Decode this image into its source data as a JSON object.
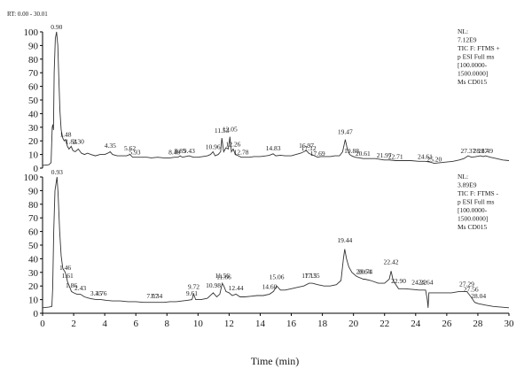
{
  "chart_data": [
    {
      "type": "line",
      "rt_label": "RT: 0.00 - 30.01",
      "info": [
        "NL:",
        "7.12E9",
        "TIC F: FTMS +",
        "p ESI Full ms",
        "[100.0000-",
        "1500.0000]",
        "Ms CD015"
      ],
      "xlim": [
        0,
        30
      ],
      "ylim": [
        0,
        100
      ],
      "yticks": [
        "0",
        "10",
        "20",
        "30",
        "40",
        "50",
        "60",
        "70",
        "80",
        "90",
        "100"
      ],
      "peak_labels": [
        {
          "x": 0.9,
          "y": 100,
          "label": "0.90"
        },
        {
          "x": 1.48,
          "y": 21,
          "label": "1.48"
        },
        {
          "x": 1.84,
          "y": 16,
          "label": "1.84"
        },
        {
          "x": 2.3,
          "y": 16,
          "label": "2.30"
        },
        {
          "x": 4.35,
          "y": 13,
          "label": "4.35"
        },
        {
          "x": 5.62,
          "y": 11,
          "label": "5.62"
        },
        {
          "x": 5.93,
          "y": 8,
          "label": "5.93"
        },
        {
          "x": 8.48,
          "y": 8,
          "label": "8.48"
        },
        {
          "x": 8.85,
          "y": 9,
          "label": "8.85"
        },
        {
          "x": 9.43,
          "y": 9,
          "label": "9.43"
        },
        {
          "x": 10.96,
          "y": 12,
          "label": "10.96"
        },
        {
          "x": 11.53,
          "y": 24,
          "label": "11.53"
        },
        {
          "x": 12.05,
          "y": 25,
          "label": "12.05"
        },
        {
          "x": 12.26,
          "y": 14,
          "label": "12.26"
        },
        {
          "x": 12.78,
          "y": 8,
          "label": "12.78"
        },
        {
          "x": 14.83,
          "y": 11,
          "label": "14.83"
        },
        {
          "x": 16.97,
          "y": 13,
          "label": "16.97"
        },
        {
          "x": 17.12,
          "y": 11,
          "label": "17.12"
        },
        {
          "x": 17.69,
          "y": 7,
          "label": "17.69"
        },
        {
          "x": 19.47,
          "y": 23,
          "label": "19.47"
        },
        {
          "x": 19.88,
          "y": 9,
          "label": "19.88"
        },
        {
          "x": 20.61,
          "y": 7,
          "label": "20.61"
        },
        {
          "x": 21.97,
          "y": 6,
          "label": "21.97"
        },
        {
          "x": 22.71,
          "y": 5,
          "label": "22.71"
        },
        {
          "x": 24.61,
          "y": 5,
          "label": "24.61"
        },
        {
          "x": 25.2,
          "y": 3,
          "label": "25.20"
        },
        {
          "x": 27.37,
          "y": 9,
          "label": "27.37"
        },
        {
          "x": 28.17,
          "y": 9,
          "label": "28.17"
        },
        {
          "x": 28.49,
          "y": 9,
          "label": "28.49"
        }
      ],
      "trace": [
        [
          0,
          2
        ],
        [
          0.4,
          2.5
        ],
        [
          0.55,
          4
        ],
        [
          0.62,
          30
        ],
        [
          0.66,
          32
        ],
        [
          0.7,
          28
        ],
        [
          0.75,
          70
        ],
        [
          0.82,
          95
        ],
        [
          0.9,
          100
        ],
        [
          0.98,
          90
        ],
        [
          1.05,
          65
        ],
        [
          1.12,
          42
        ],
        [
          1.2,
          28
        ],
        [
          1.3,
          22
        ],
        [
          1.4,
          20
        ],
        [
          1.48,
          21
        ],
        [
          1.6,
          16
        ],
        [
          1.7,
          14
        ],
        [
          1.84,
          16
        ],
        [
          1.95,
          13
        ],
        [
          2.1,
          12
        ],
        [
          2.3,
          14
        ],
        [
          2.5,
          11
        ],
        [
          2.7,
          10
        ],
        [
          2.9,
          11
        ],
        [
          3.1,
          10
        ],
        [
          3.4,
          9
        ],
        [
          3.7,
          10
        ],
        [
          4.0,
          10
        ],
        [
          4.2,
          11
        ],
        [
          4.35,
          12
        ],
        [
          4.5,
          10
        ],
        [
          4.8,
          9
        ],
        [
          5.1,
          9
        ],
        [
          5.4,
          9
        ],
        [
          5.62,
          10
        ],
        [
          5.8,
          8
        ],
        [
          5.93,
          8
        ],
        [
          6.3,
          8
        ],
        [
          6.7,
          8
        ],
        [
          7.0,
          7.5
        ],
        [
          7.4,
          8
        ],
        [
          7.8,
          7.5
        ],
        [
          8.2,
          7.5
        ],
        [
          8.48,
          8
        ],
        [
          8.7,
          8
        ],
        [
          8.85,
          9
        ],
        [
          9.0,
          8
        ],
        [
          9.2,
          8.5
        ],
        [
          9.43,
          9
        ],
        [
          9.7,
          8
        ],
        [
          10.0,
          8
        ],
        [
          10.3,
          8.5
        ],
        [
          10.6,
          9
        ],
        [
          10.8,
          10
        ],
        [
          10.96,
          12
        ],
        [
          11.1,
          9
        ],
        [
          11.3,
          10
        ],
        [
          11.45,
          12
        ],
        [
          11.53,
          22
        ],
        [
          11.65,
          12
        ],
        [
          11.8,
          15
        ],
        [
          11.95,
          14
        ],
        [
          12.05,
          23
        ],
        [
          12.15,
          12
        ],
        [
          12.26,
          14
        ],
        [
          12.4,
          10
        ],
        [
          12.6,
          9
        ],
        [
          12.78,
          8
        ],
        [
          13.0,
          8
        ],
        [
          13.3,
          8
        ],
        [
          13.6,
          8.5
        ],
        [
          14.0,
          8.5
        ],
        [
          14.4,
          9
        ],
        [
          14.6,
          9.5
        ],
        [
          14.83,
          10.5
        ],
        [
          15.0,
          9
        ],
        [
          15.3,
          9.5
        ],
        [
          15.6,
          9
        ],
        [
          16.0,
          9
        ],
        [
          16.3,
          10
        ],
        [
          16.6,
          11
        ],
        [
          16.8,
          12
        ],
        [
          16.97,
          13
        ],
        [
          17.12,
          11
        ],
        [
          17.3,
          10
        ],
        [
          17.5,
          9
        ],
        [
          17.69,
          8
        ],
        [
          17.9,
          8.5
        ],
        [
          18.2,
          8.5
        ],
        [
          18.5,
          8.5
        ],
        [
          18.8,
          9
        ],
        [
          19.1,
          9
        ],
        [
          19.3,
          12
        ],
        [
          19.47,
          21
        ],
        [
          19.6,
          14
        ],
        [
          19.75,
          10
        ],
        [
          19.88,
          9
        ],
        [
          20.1,
          8
        ],
        [
          20.4,
          7.5
        ],
        [
          20.61,
          7
        ],
        [
          21.0,
          7
        ],
        [
          21.4,
          7
        ],
        [
          21.97,
          6
        ],
        [
          22.3,
          6
        ],
        [
          22.71,
          5.5
        ],
        [
          23.2,
          5.5
        ],
        [
          23.7,
          5.5
        ],
        [
          24.2,
          5
        ],
        [
          24.61,
          5
        ],
        [
          24.9,
          4.5
        ],
        [
          25.2,
          3.5
        ],
        [
          25.6,
          4
        ],
        [
          26.0,
          4.5
        ],
        [
          26.4,
          5
        ],
        [
          26.8,
          6
        ],
        [
          27.1,
          7
        ],
        [
          27.37,
          9
        ],
        [
          27.6,
          8
        ],
        [
          27.9,
          8.5
        ],
        [
          28.17,
          9
        ],
        [
          28.35,
          8.5
        ],
        [
          28.49,
          9
        ],
        [
          28.8,
          8
        ],
        [
          29.2,
          7
        ],
        [
          29.6,
          6
        ],
        [
          30,
          5.5
        ]
      ]
    },
    {
      "type": "line",
      "info": [
        "NL:",
        "3.89E9",
        "TIC F: FTMS -",
        "p ESI Full ms",
        "[100.0000-",
        "1500.0000]",
        "Ms CD015"
      ],
      "xlim": [
        0,
        30
      ],
      "ylim": [
        0,
        100
      ],
      "yticks": [
        "0",
        "10",
        "20",
        "30",
        "40",
        "50",
        "60",
        "70",
        "80",
        "90",
        "100"
      ],
      "xticks": [
        "0",
        "2",
        "4",
        "6",
        "8",
        "10",
        "12",
        "14",
        "16",
        "18",
        "20",
        "22",
        "24",
        "26",
        "28",
        "30"
      ],
      "xlabel": "Time (min)",
      "peak_labels": [
        {
          "x": 0.93,
          "y": 100,
          "label": "0.93"
        },
        {
          "x": 1.46,
          "y": 30,
          "label": "1.46"
        },
        {
          "x": 1.61,
          "y": 24,
          "label": "1.61"
        },
        {
          "x": 1.86,
          "y": 17,
          "label": "1.86"
        },
        {
          "x": 2.43,
          "y": 15,
          "label": "2.43"
        },
        {
          "x": 3.45,
          "y": 11,
          "label": "3.45"
        },
        {
          "x": 3.76,
          "y": 11,
          "label": "3.76"
        },
        {
          "x": 7.07,
          "y": 9,
          "label": "7.07"
        },
        {
          "x": 7.34,
          "y": 9,
          "label": "7.34"
        },
        {
          "x": 9.61,
          "y": 11,
          "label": "9.61"
        },
        {
          "x": 9.72,
          "y": 16,
          "label": "9.72"
        },
        {
          "x": 10.98,
          "y": 17,
          "label": "10.98"
        },
        {
          "x": 11.56,
          "y": 24,
          "label": "11.56"
        },
        {
          "x": 11.66,
          "y": 23,
          "label": "11.66"
        },
        {
          "x": 12.44,
          "y": 15,
          "label": "12.44"
        },
        {
          "x": 14.6,
          "y": 16,
          "label": "14.60"
        },
        {
          "x": 15.06,
          "y": 23,
          "label": "15.06"
        },
        {
          "x": 17.15,
          "y": 24,
          "label": "17.15"
        },
        {
          "x": 17.35,
          "y": 24,
          "label": "17.35"
        },
        {
          "x": 19.44,
          "y": 50,
          "label": "19.44"
        },
        {
          "x": 20.64,
          "y": 27,
          "label": "20.64"
        },
        {
          "x": 20.74,
          "y": 27,
          "label": "20.74"
        },
        {
          "x": 22.42,
          "y": 34,
          "label": "22.42"
        },
        {
          "x": 22.9,
          "y": 20,
          "label": "22.90"
        },
        {
          "x": 24.22,
          "y": 19,
          "label": "24.22"
        },
        {
          "x": 24.64,
          "y": 19,
          "label": "24.64"
        },
        {
          "x": 27.29,
          "y": 18,
          "label": "27.29"
        },
        {
          "x": 27.56,
          "y": 14,
          "label": "27.56"
        },
        {
          "x": 28.04,
          "y": 9,
          "label": "28.04"
        }
      ],
      "trace": [
        [
          0,
          4
        ],
        [
          0.4,
          4.5
        ],
        [
          0.6,
          5
        ],
        [
          0.65,
          18
        ],
        [
          0.72,
          60
        ],
        [
          0.8,
          90
        ],
        [
          0.93,
          100
        ],
        [
          1.0,
          88
        ],
        [
          1.1,
          60
        ],
        [
          1.2,
          42
        ],
        [
          1.3,
          33
        ],
        [
          1.46,
          30
        ],
        [
          1.55,
          26
        ],
        [
          1.61,
          23
        ],
        [
          1.75,
          19
        ],
        [
          1.86,
          16
        ],
        [
          2.0,
          15
        ],
        [
          2.2,
          14
        ],
        [
          2.43,
          14
        ],
        [
          2.7,
          12
        ],
        [
          3.0,
          11
        ],
        [
          3.2,
          10.5
        ],
        [
          3.45,
          10
        ],
        [
          3.6,
          10
        ],
        [
          3.76,
          10
        ],
        [
          4.1,
          9.5
        ],
        [
          4.5,
          9
        ],
        [
          5.0,
          9
        ],
        [
          5.5,
          8.5
        ],
        [
          6.0,
          8.5
        ],
        [
          6.5,
          8
        ],
        [
          7.07,
          8
        ],
        [
          7.34,
          8
        ],
        [
          7.8,
          8
        ],
        [
          8.2,
          8.5
        ],
        [
          8.6,
          8.5
        ],
        [
          9.0,
          9
        ],
        [
          9.3,
          9.5
        ],
        [
          9.61,
          10
        ],
        [
          9.72,
          14
        ],
        [
          9.85,
          10
        ],
        [
          10.2,
          10
        ],
        [
          10.6,
          11
        ],
        [
          10.98,
          15
        ],
        [
          11.2,
          12
        ],
        [
          11.4,
          14
        ],
        [
          11.56,
          22
        ],
        [
          11.66,
          20
        ],
        [
          11.8,
          16
        ],
        [
          12.0,
          15
        ],
        [
          12.2,
          13
        ],
        [
          12.44,
          14
        ],
        [
          12.7,
          12
        ],
        [
          13.0,
          12
        ],
        [
          13.4,
          12.5
        ],
        [
          13.8,
          13
        ],
        [
          14.2,
          13
        ],
        [
          14.6,
          14
        ],
        [
          14.85,
          16
        ],
        [
          15.06,
          20
        ],
        [
          15.3,
          17
        ],
        [
          15.6,
          17
        ],
        [
          16.0,
          18
        ],
        [
          16.4,
          19
        ],
        [
          16.8,
          20
        ],
        [
          17.15,
          22
        ],
        [
          17.35,
          22
        ],
        [
          17.7,
          21
        ],
        [
          18.1,
          20
        ],
        [
          18.5,
          20
        ],
        [
          18.9,
          21
        ],
        [
          19.2,
          24
        ],
        [
          19.35,
          40
        ],
        [
          19.44,
          47
        ],
        [
          19.55,
          40
        ],
        [
          19.7,
          34
        ],
        [
          19.9,
          30
        ],
        [
          20.2,
          27
        ],
        [
          20.64,
          25
        ],
        [
          20.74,
          25
        ],
        [
          21.1,
          24
        ],
        [
          21.6,
          22
        ],
        [
          22.0,
          22
        ],
        [
          22.3,
          25
        ],
        [
          22.42,
          31
        ],
        [
          22.55,
          24
        ],
        [
          22.9,
          18
        ],
        [
          23.3,
          18
        ],
        [
          23.8,
          17.5
        ],
        [
          24.22,
          17
        ],
        [
          24.64,
          17
        ],
        [
          24.75,
          10
        ],
        [
          24.8,
          4
        ],
        [
          24.85,
          15
        ],
        [
          25.2,
          15
        ],
        [
          25.8,
          15
        ],
        [
          26.3,
          15
        ],
        [
          26.8,
          16
        ],
        [
          27.29,
          16
        ],
        [
          27.56,
          12
        ],
        [
          27.8,
          8
        ],
        [
          28.04,
          7
        ],
        [
          28.5,
          6
        ],
        [
          29.0,
          5
        ],
        [
          29.5,
          4.5
        ],
        [
          30,
          4
        ]
      ]
    }
  ]
}
